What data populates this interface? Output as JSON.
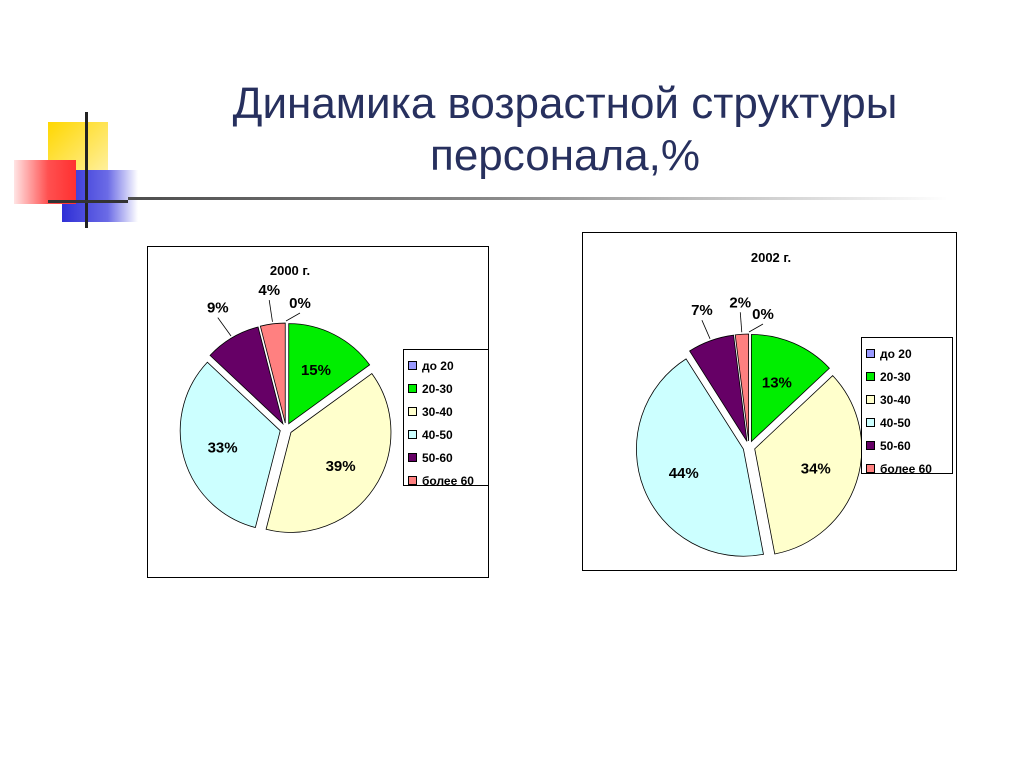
{
  "page": {
    "title_line1": "Динамика возрастной структуры",
    "title_line2": "персонала,%"
  },
  "colors": {
    "title": "#27305e",
    "deco_yellow": "#ffd700",
    "deco_red": "#ff4a4a",
    "deco_blue": "#2f2fd6"
  },
  "chart_data": [
    {
      "type": "pie",
      "title": "2000 г.",
      "categories": [
        "до 20",
        "20-30",
        "30-40",
        "40-50",
        "50-60",
        "более 60"
      ],
      "values": [
        0,
        15,
        39,
        33,
        9,
        4
      ],
      "value_labels": [
        "0%",
        "15%",
        "39%",
        "33%",
        "9%",
        "4%"
      ],
      "colors": [
        "#9999ff",
        "#00ee00",
        "#ffffcc",
        "#ccffff",
        "#660066",
        "#ff8080"
      ],
      "exploded": true,
      "legend_position": "right"
    },
    {
      "type": "pie",
      "title": "2002 г.",
      "categories": [
        "до 20",
        "20-30",
        "30-40",
        "40-50",
        "50-60",
        "более 60"
      ],
      "values": [
        0,
        13,
        34,
        44,
        7,
        2
      ],
      "value_labels": [
        "0%",
        "13%",
        "34%",
        "44%",
        "7%",
        "2%"
      ],
      "colors": [
        "#9999ff",
        "#00ee00",
        "#ffffcc",
        "#ccffff",
        "#660066",
        "#ff8080"
      ],
      "exploded": true,
      "legend_position": "right"
    }
  ]
}
